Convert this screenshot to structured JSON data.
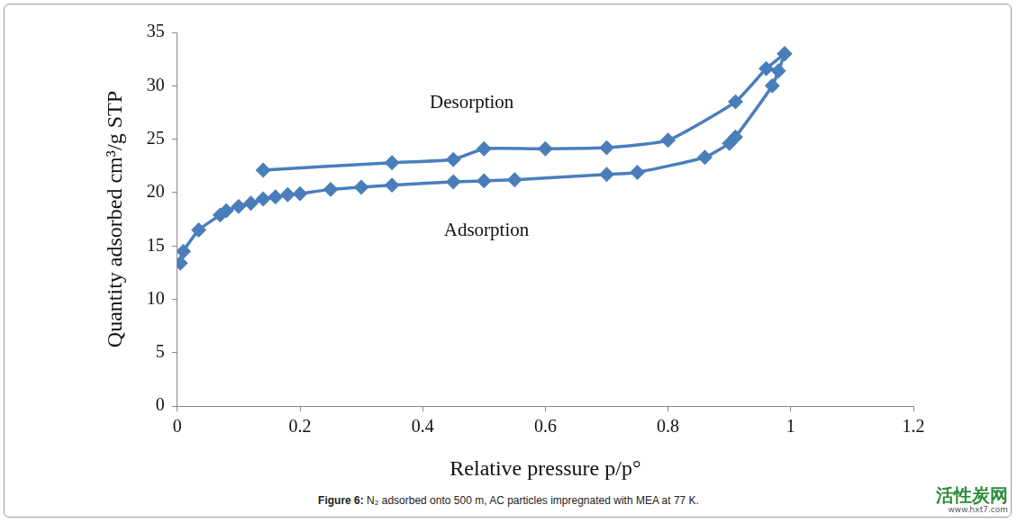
{
  "chart_data": {
    "type": "line",
    "caption_label": "Figure 6:",
    "caption": "N₂ adsorbed onto 500 m, AC particles impregnated with MEA at 77 K.",
    "watermark": [
      "活性炭网",
      "www.hxt7.com"
    ],
    "x_label": "Relative pressure p/p°",
    "y_label": "Quantity adsorbed cm³/g STP",
    "annotations": [
      "Desorption",
      "Adsorption"
    ],
    "series": [
      {
        "name": "Adsorption",
        "color": "#4a7ebb",
        "marker": "diamond",
        "line_style": "solid",
        "x": [
          0.005,
          0.01,
          0.035,
          0.07,
          0.08,
          0.1,
          0.12,
          0.14,
          0.16,
          0.18,
          0.2,
          0.25,
          0.3,
          0.35,
          0.45,
          0.5,
          0.55,
          0.7,
          0.75,
          0.86,
          0.9,
          0.91,
          0.97,
          0.98,
          0.99
        ],
        "values": [
          13.4,
          14.5,
          16.5,
          17.9,
          18.3,
          18.7,
          19.0,
          19.4,
          19.6,
          19.8,
          19.9,
          20.3,
          20.5,
          20.7,
          21.0,
          21.1,
          21.2,
          21.7,
          21.9,
          23.3,
          24.6,
          25.2,
          30.0,
          31.4,
          33.0
        ]
      },
      {
        "name": "Desorption",
        "color": "#4a7ebb",
        "marker": "diamond",
        "line_style": "solid",
        "x": [
          0.99,
          0.96,
          0.91,
          0.8,
          0.7,
          0.6,
          0.5,
          0.45,
          0.35,
          0.14
        ],
        "values": [
          33.0,
          31.6,
          28.5,
          24.9,
          24.2,
          24.1,
          24.1,
          23.1,
          22.8,
          22.1
        ]
      }
    ],
    "xlim": [
      0,
      1.2
    ],
    "xticks": [
      0,
      0.2,
      0.4,
      0.6,
      0.8,
      1,
      1.2
    ],
    "ylim": [
      0,
      35
    ],
    "yticks": [
      0,
      5,
      10,
      15,
      20,
      25,
      30,
      35
    ],
    "grid": false
  }
}
